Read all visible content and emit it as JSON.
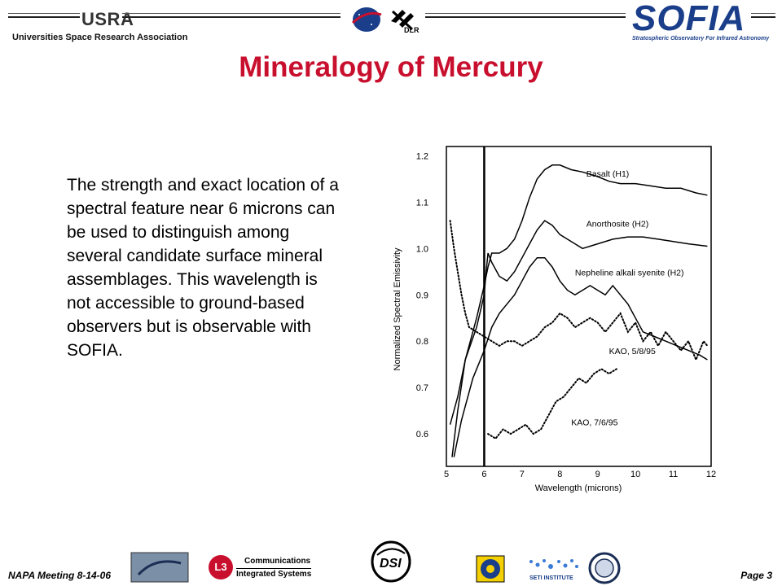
{
  "header": {
    "org_logo_text": "USRA",
    "org_name": "Universities Space Research Association",
    "partner_logo_text": "DLR",
    "sofia_logo_text": "SOFIA",
    "sofia_tagline": "Stratospheric Observatory For Infrared Astronomy"
  },
  "slide": {
    "title": "Mineralogy of Mercury",
    "body": "The strength and exact location of a spectral feature near 6 microns can be used to distinguish among several candidate surface mineral assemblages.  This wavelength is not accessible to ground-based observers but is observable with SOFIA."
  },
  "footer": {
    "meeting": "NAPA Meeting 8-14-06",
    "page": "Page 3",
    "l3_line1": "Communications",
    "l3_line2": "Integrated Systems",
    "l3_mark": "L3",
    "dsi_text": "DSI",
    "seti_text": "SETI INSTITUTE"
  },
  "chart_data": {
    "type": "line",
    "title": "",
    "xlabel": "Wavelength (microns)",
    "ylabel": "Normalized Spectral Emissivity",
    "xlim": [
      5,
      12
    ],
    "ylim": [
      0.53,
      1.22
    ],
    "xticks": [
      "5",
      "6",
      "7",
      "8",
      "9",
      "10",
      "11",
      "12"
    ],
    "yticks": [
      "1.2",
      "1.1",
      "1.0",
      "0.9",
      "0.8",
      "0.7",
      "0.6"
    ],
    "vline": 6.0,
    "grid": false,
    "series": [
      {
        "name": "Basalt (H1)",
        "style": "solid",
        "x": [
          5.15,
          5.3,
          5.5,
          5.8,
          6.0,
          6.1,
          6.2,
          6.4,
          6.6,
          6.8,
          7.0,
          7.2,
          7.4,
          7.6,
          7.8,
          8.0,
          8.3,
          8.6,
          9.0,
          9.3,
          9.6,
          10.0,
          10.4,
          10.8,
          11.2,
          11.6,
          11.9
        ],
        "y": [
          0.55,
          0.65,
          0.76,
          0.85,
          0.92,
          0.96,
          0.99,
          0.99,
          1.0,
          1.02,
          1.06,
          1.11,
          1.15,
          1.17,
          1.18,
          1.18,
          1.17,
          1.165,
          1.155,
          1.145,
          1.14,
          1.14,
          1.135,
          1.13,
          1.13,
          1.12,
          1.115
        ]
      },
      {
        "name": "Anorthosite (H2)",
        "style": "solid",
        "x": [
          5.1,
          5.3,
          5.5,
          5.8,
          6.0,
          6.05,
          6.1,
          6.2,
          6.4,
          6.6,
          6.8,
          7.0,
          7.2,
          7.4,
          7.6,
          7.8,
          8.0,
          8.2,
          8.4,
          8.6,
          8.8,
          9.0,
          9.4,
          9.8,
          10.2,
          10.6,
          11.0,
          11.4,
          11.9
        ],
        "y": [
          0.62,
          0.68,
          0.76,
          0.83,
          0.9,
          0.95,
          0.99,
          0.97,
          0.94,
          0.93,
          0.95,
          0.98,
          1.01,
          1.04,
          1.06,
          1.05,
          1.03,
          1.02,
          1.01,
          1.0,
          1.005,
          1.01,
          1.02,
          1.025,
          1.025,
          1.02,
          1.015,
          1.01,
          1.005
        ]
      },
      {
        "name": "Nepheline alkali syenite (H2)",
        "style": "solid",
        "x": [
          5.2,
          5.4,
          5.7,
          6.0,
          6.2,
          6.4,
          6.6,
          6.8,
          7.0,
          7.2,
          7.4,
          7.6,
          7.8,
          8.0,
          8.2,
          8.4,
          8.6,
          8.8,
          9.0,
          9.2,
          9.4,
          9.6,
          9.8,
          10.0,
          10.2,
          10.5,
          10.8,
          11.1,
          11.4,
          11.7,
          11.9
        ],
        "y": [
          0.55,
          0.63,
          0.72,
          0.78,
          0.83,
          0.86,
          0.88,
          0.9,
          0.93,
          0.96,
          0.98,
          0.98,
          0.96,
          0.93,
          0.91,
          0.9,
          0.91,
          0.92,
          0.91,
          0.9,
          0.92,
          0.9,
          0.88,
          0.85,
          0.82,
          0.81,
          0.8,
          0.79,
          0.78,
          0.77,
          0.76
        ]
      },
      {
        "name": "KAO, 5/8/95",
        "style": "dotted",
        "x": [
          5.1,
          5.2,
          5.3,
          5.4,
          5.5,
          5.6,
          5.8,
          6.0,
          6.2,
          6.4,
          6.6,
          6.8,
          7.0,
          7.2,
          7.4,
          7.6,
          7.8,
          8.0,
          8.2,
          8.4,
          8.6,
          8.8,
          9.0,
          9.2,
          9.4,
          9.6,
          9.8,
          10.0,
          10.2,
          10.4,
          10.6,
          10.8,
          11.0,
          11.2,
          11.4,
          11.6,
          11.8,
          11.9
        ],
        "y": [
          1.06,
          1.0,
          0.95,
          0.9,
          0.86,
          0.83,
          0.82,
          0.81,
          0.8,
          0.79,
          0.8,
          0.8,
          0.79,
          0.8,
          0.81,
          0.83,
          0.84,
          0.86,
          0.85,
          0.83,
          0.84,
          0.85,
          0.84,
          0.82,
          0.84,
          0.86,
          0.82,
          0.84,
          0.8,
          0.82,
          0.79,
          0.82,
          0.8,
          0.78,
          0.8,
          0.76,
          0.8,
          0.79
        ]
      },
      {
        "name": "KAO, 7/6/95",
        "style": "dotted",
        "x": [
          6.1,
          6.3,
          6.5,
          6.7,
          6.9,
          7.1,
          7.3,
          7.5,
          7.7,
          7.9,
          8.1,
          8.3,
          8.5,
          8.7,
          8.9,
          9.1,
          9.3,
          9.5
        ],
        "y": [
          0.6,
          0.59,
          0.61,
          0.6,
          0.61,
          0.62,
          0.6,
          0.61,
          0.64,
          0.67,
          0.68,
          0.7,
          0.72,
          0.71,
          0.73,
          0.74,
          0.73,
          0.74
        ]
      }
    ]
  }
}
